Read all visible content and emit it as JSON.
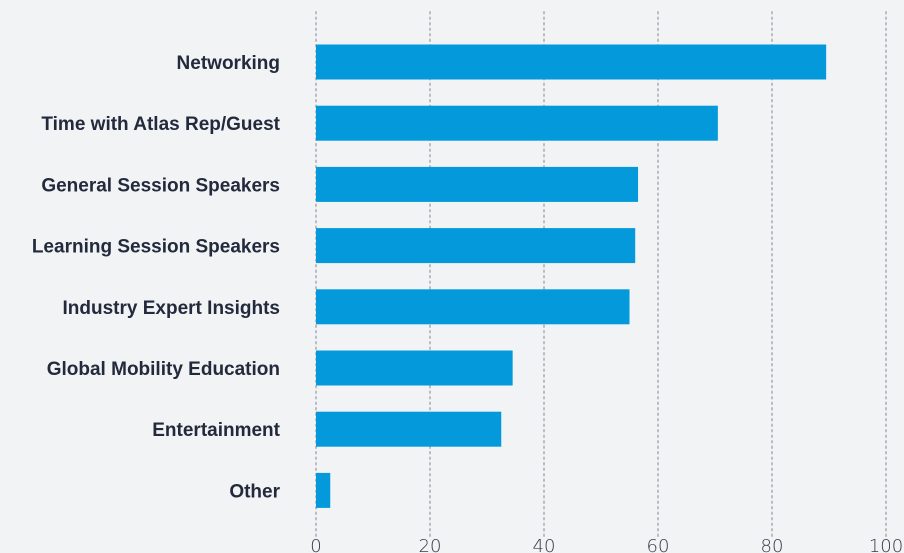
{
  "chart_data": {
    "type": "bar",
    "orientation": "horizontal",
    "categories": [
      "Networking",
      "Time with Atlas Rep/Guest",
      "General Session Speakers",
      "Learning Session Speakers",
      "Industry Expert Insights",
      "Global Mobility Education",
      "Entertainment",
      "Other"
    ],
    "values": [
      89.5,
      70.5,
      56.5,
      56,
      55,
      34.5,
      32.5,
      2.5
    ],
    "xlim": [
      0,
      100
    ],
    "xticks": [
      "0",
      "20",
      "40",
      "60",
      "80",
      "100"
    ],
    "grid": "vertical dotted",
    "title": "",
    "xlabel": "",
    "ylabel": "",
    "colors": {
      "bar": "#0399db",
      "grid": "#b9bcc2",
      "background": "#f2f3f5"
    }
  }
}
